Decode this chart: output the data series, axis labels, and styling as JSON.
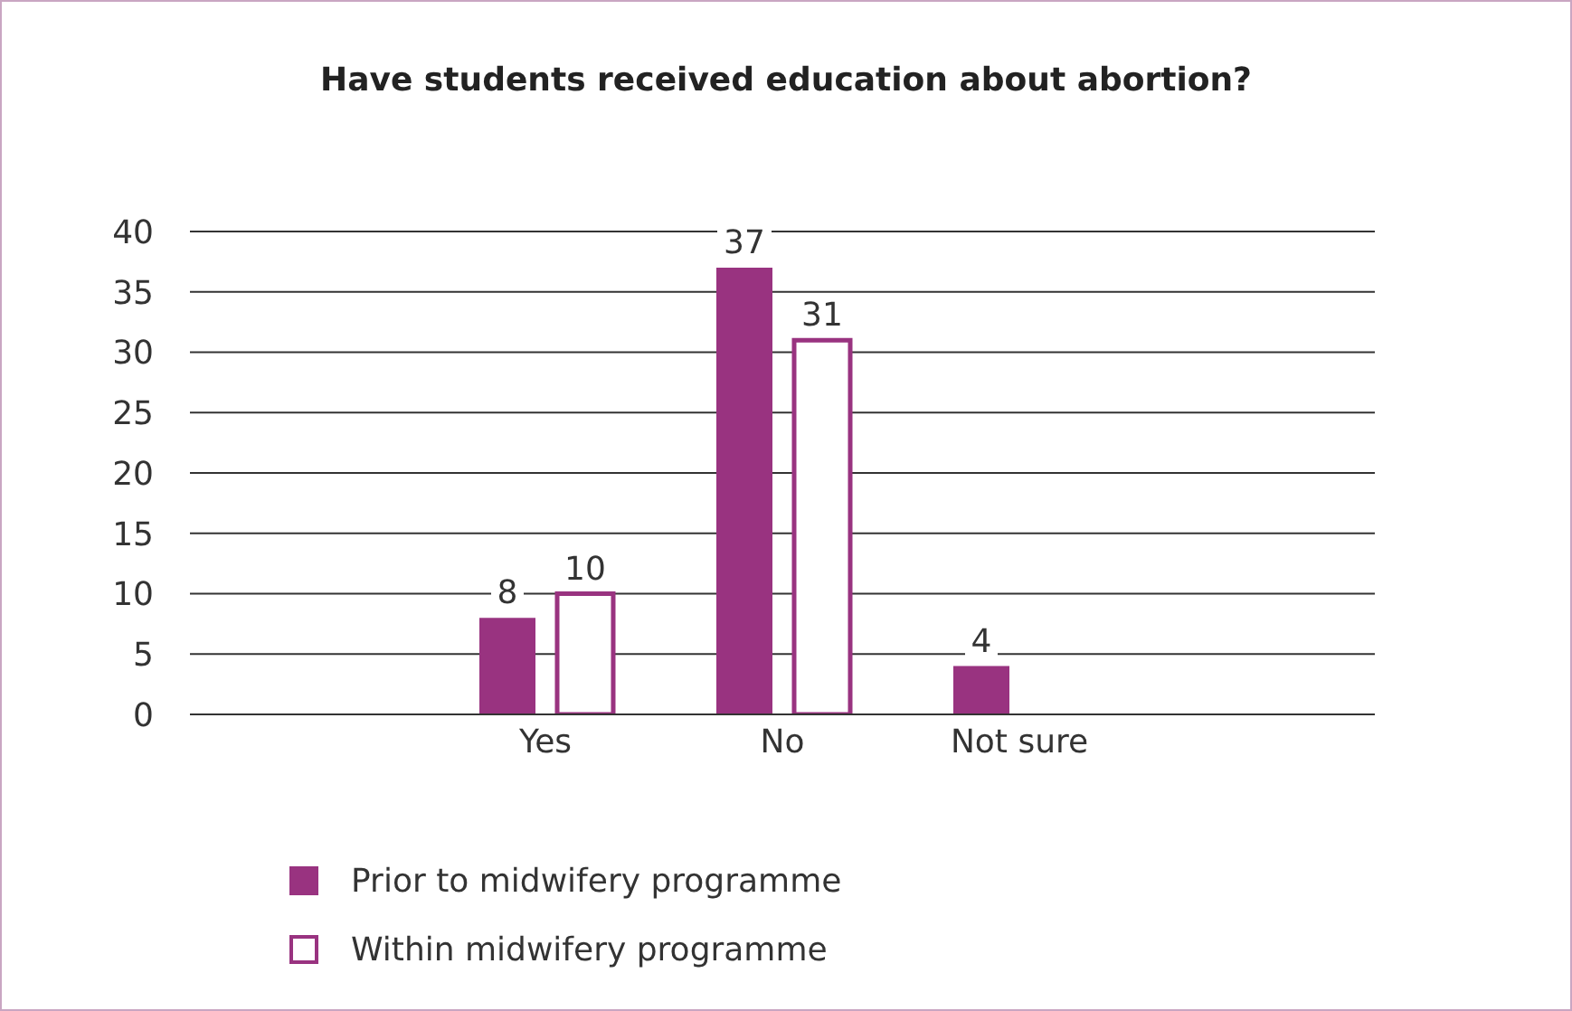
{
  "chart_data": {
    "type": "bar",
    "title": "Have students received education about abortion?",
    "categories": [
      null,
      "Yes",
      "No",
      "Not sure",
      null
    ],
    "series": [
      {
        "name": "Prior to midwifery programme",
        "color": "#993380",
        "values": [
          null,
          8,
          37,
          4,
          null
        ]
      },
      {
        "name": "Within midwifery programme",
        "color": "#993380",
        "values": [
          null,
          10,
          31,
          null,
          null
        ]
      }
    ],
    "ylim": [
      0,
      40
    ],
    "yticks": [
      0,
      5,
      10,
      15,
      20,
      25,
      30,
      35,
      40
    ],
    "grid": "y",
    "legend": "bottom left",
    "data_labels": true
  }
}
